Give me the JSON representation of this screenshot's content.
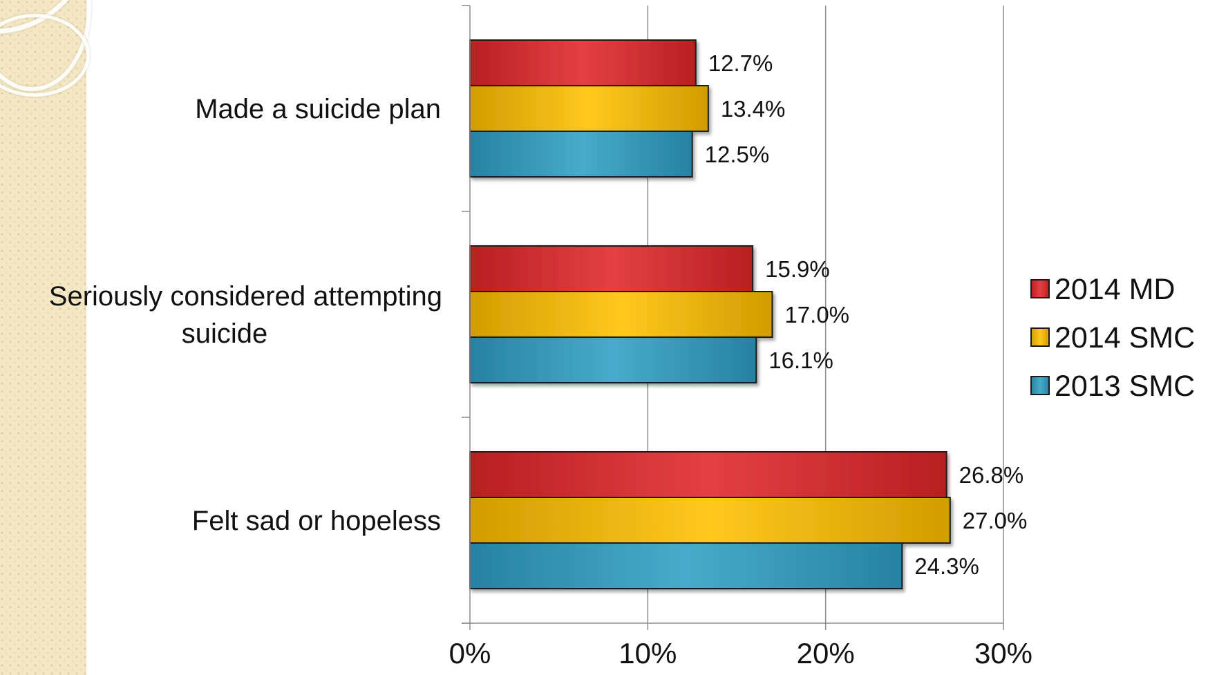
{
  "chart_data": {
    "type": "bar",
    "orientation": "horizontal",
    "categories": [
      "Made a suicide plan",
      "Seriously considered attempting suicide",
      "Felt sad or hopeless"
    ],
    "category_lines": [
      [
        "Made a suicide plan"
      ],
      [
        "Seriously considered attempting",
        "suicide"
      ],
      [
        "Felt sad or hopeless"
      ]
    ],
    "series": [
      {
        "name": "2014 MD",
        "values": [
          12.7,
          15.9,
          26.8
        ],
        "labels": [
          "12.7%",
          "15.9%",
          "26.8%"
        ],
        "color": "#e0262a"
      },
      {
        "name": "2014 SMC",
        "values": [
          13.4,
          17.0,
          27.0
        ],
        "labels": [
          "13.4%",
          "17.0%",
          "27.0%"
        ],
        "color": "#ffc000"
      },
      {
        "name": "2013 SMC",
        "values": [
          12.5,
          16.1,
          24.3
        ],
        "labels": [
          "12.5%",
          "16.1%",
          "24.3%"
        ],
        "color": "#2f9fc4"
      }
    ],
    "xlim": [
      0,
      30
    ],
    "xticks": [
      0,
      10,
      20,
      30
    ],
    "xtick_labels": [
      "0%",
      "10%",
      "20%",
      "30%"
    ],
    "grid": "vertical",
    "legend": "right",
    "title": "",
    "xlabel": "",
    "ylabel": ""
  }
}
